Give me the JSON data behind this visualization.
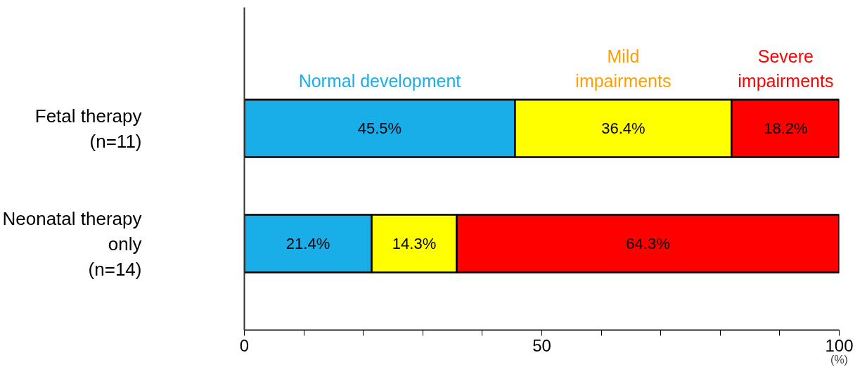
{
  "chart_data": {
    "type": "bar",
    "orientation": "horizontal",
    "stacked": true,
    "categories": [
      "Fetal therapy\n(n=11)",
      "Neonatal therapy\nonly\n(n=14)"
    ],
    "series": [
      {
        "name": "Normal development",
        "color": "#1aaee8",
        "values": [
          45.5,
          21.4
        ],
        "value_labels": [
          "45.5%",
          "21.4%"
        ]
      },
      {
        "name": "Mild\nimpairments",
        "color": "#ffff00",
        "values": [
          36.4,
          14.3
        ],
        "value_labels": [
          "36.4%",
          "14.3%"
        ]
      },
      {
        "name": "Severe\nimpairments",
        "color": "#ff0000",
        "values": [
          18.2,
          64.3
        ],
        "value_labels": [
          "18.2%",
          "64.3%"
        ]
      }
    ],
    "xlim": [
      0,
      100
    ],
    "xticks": [
      0,
      {
        "value": 10,
        "label": null
      },
      {
        "value": 20,
        "label": null
      },
      {
        "value": 30,
        "label": null
      },
      {
        "value": 40,
        "label": null
      },
      50,
      {
        "value": 60,
        "label": null
      },
      {
        "value": 70,
        "label": null
      },
      {
        "value": 80,
        "label": null
      },
      {
        "value": 90,
        "label": null
      },
      100
    ],
    "xlabel": "(%)",
    "legend": "top",
    "grid": false
  }
}
